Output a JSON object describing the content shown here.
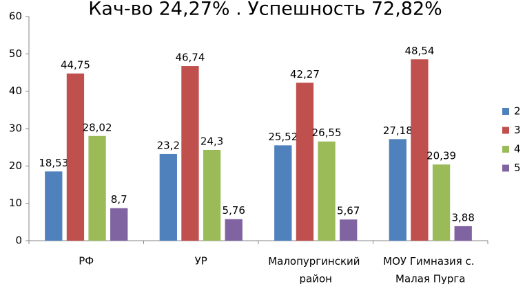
{
  "chart_data": {
    "type": "bar",
    "title": "Кач-во 24,27% . Успешность 72,82%",
    "categories": [
      "РФ",
      "УР",
      "Малопургинский\nрайон",
      "МОУ Гимназия с.\nМалая Пурга"
    ],
    "series": [
      {
        "name": "2",
        "color": "#4f81bd",
        "values": [
          18.53,
          23.2,
          25.52,
          27.18
        ],
        "value_labels": [
          "18,53",
          "23,2",
          "25,52",
          "27,18"
        ]
      },
      {
        "name": "3",
        "color": "#c0504d",
        "values": [
          44.75,
          46.74,
          42.27,
          48.54
        ],
        "value_labels": [
          "44,75",
          "46,74",
          "42,27",
          "48,54"
        ]
      },
      {
        "name": "4",
        "color": "#9bbb59",
        "values": [
          28.02,
          24.3,
          26.55,
          20.39
        ],
        "value_labels": [
          "28,02",
          "24,3",
          "26,55",
          "20,39"
        ]
      },
      {
        "name": "5",
        "color": "#8064a2",
        "values": [
          8.7,
          5.76,
          5.67,
          3.88
        ],
        "value_labels": [
          "8,7",
          "5,76",
          "5,67",
          "3,88"
        ]
      }
    ],
    "ylim": [
      0,
      60
    ],
    "yticks": [
      0,
      10,
      20,
      30,
      40,
      50,
      60
    ],
    "grid": false,
    "legend": "right"
  }
}
